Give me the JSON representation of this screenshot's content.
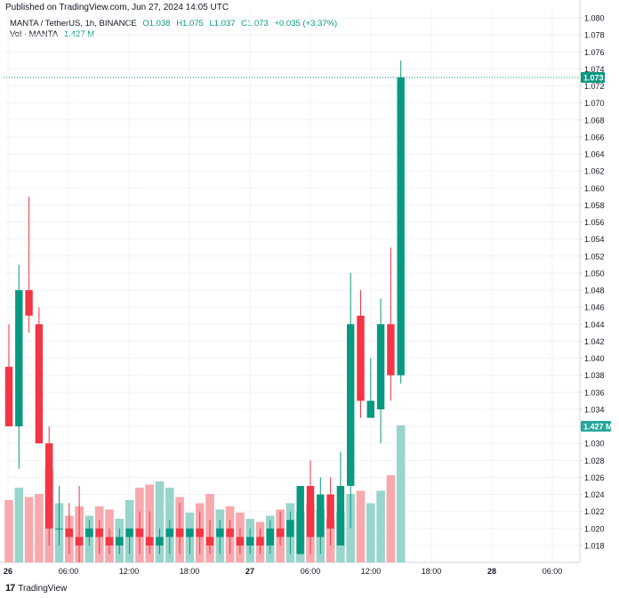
{
  "header": {
    "published": "Published on TradingView.com, Jun 27, 2024 14:05 UTC",
    "symbol": "MANTA / TetherUS, 1h, BINANCE",
    "o": "O1.038",
    "h": "H1.075",
    "l": "L1.037",
    "c": "C1.073",
    "change": "+0.035 (+3.37%)",
    "vol_label": "Vol · MANTA",
    "vol_value": "1.427 M"
  },
  "footer": {
    "brand": "TradingView"
  },
  "colors": {
    "up": "#089981",
    "down": "#f23645",
    "up_vol": "#99d5cc",
    "down_vol": "#f7a9ae",
    "grid": "#f0f3fa"
  },
  "chart_data": {
    "type": "candlestick",
    "y_ticks": [
      "1.080",
      "1.078",
      "1.076",
      "1.074",
      "1.072",
      "1.070",
      "1.068",
      "1.066",
      "1.064",
      "1.062",
      "1.060",
      "1.058",
      "1.056",
      "1.054",
      "1.052",
      "1.050",
      "1.048",
      "1.046",
      "1.044",
      "1.042",
      "1.040",
      "1.038",
      "1.036",
      "1.034",
      "1.032",
      "1.030",
      "1.028",
      "1.026",
      "1.024",
      "1.022",
      "1.020",
      "1.018"
    ],
    "x_ticks": [
      "26",
      "06:00",
      "12:00",
      "18:00",
      "27",
      "06:00",
      "12:00",
      "18:00",
      "28",
      "06:00"
    ],
    "last_price_label": "1.073",
    "volume_label": "1.427 M",
    "ylim": [
      1.0165,
      1.081
    ],
    "candles": [
      {
        "o": 1.039,
        "h": 1.044,
        "l": 1.032,
        "c": 1.032
      },
      {
        "o": 1.032,
        "h": 1.051,
        "l": 1.027,
        "c": 1.048
      },
      {
        "o": 1.048,
        "h": 1.059,
        "l": 1.043,
        "c": 1.045
      },
      {
        "o": 1.044,
        "h": 1.046,
        "l": 1.03,
        "c": 1.03
      },
      {
        "o": 1.03,
        "h": 1.032,
        "l": 1.018,
        "c": 1.02
      },
      {
        "o": 1.02,
        "h": 1.025,
        "l": 1.018,
        "c": 1.02
      },
      {
        "o": 1.02,
        "h": 1.023,
        "l": 1.017,
        "c": 1.019
      },
      {
        "o": 1.019,
        "h": 1.025,
        "l": 1.016,
        "c": 1.018
      },
      {
        "o": 1.019,
        "h": 1.021,
        "l": 1.018,
        "c": 1.02
      },
      {
        "o": 1.02,
        "h": 1.021,
        "l": 1.017,
        "c": 1.019
      },
      {
        "o": 1.019,
        "h": 1.02,
        "l": 1.017,
        "c": 1.018
      },
      {
        "o": 1.018,
        "h": 1.02,
        "l": 1.017,
        "c": 1.019
      },
      {
        "o": 1.019,
        "h": 1.02,
        "l": 1.017,
        "c": 1.02
      },
      {
        "o": 1.02,
        "h": 1.022,
        "l": 1.017,
        "c": 1.019
      },
      {
        "o": 1.019,
        "h": 1.022,
        "l": 1.017,
        "c": 1.018
      },
      {
        "o": 1.018,
        "h": 1.02,
        "l": 1.017,
        "c": 1.019
      },
      {
        "o": 1.019,
        "h": 1.021,
        "l": 1.017,
        "c": 1.02
      },
      {
        "o": 1.02,
        "h": 1.023,
        "l": 1.017,
        "c": 1.019
      },
      {
        "o": 1.019,
        "h": 1.02,
        "l": 1.017,
        "c": 1.02
      },
      {
        "o": 1.02,
        "h": 1.022,
        "l": 1.017,
        "c": 1.019
      },
      {
        "o": 1.019,
        "h": 1.021,
        "l": 1.017,
        "c": 1.018
      },
      {
        "o": 1.019,
        "h": 1.021,
        "l": 1.017,
        "c": 1.02
      },
      {
        "o": 1.02,
        "h": 1.021,
        "l": 1.017,
        "c": 1.019
      },
      {
        "o": 1.019,
        "h": 1.02,
        "l": 1.017,
        "c": 1.018
      },
      {
        "o": 1.018,
        "h": 1.02,
        "l": 1.017,
        "c": 1.019
      },
      {
        "o": 1.019,
        "h": 1.02,
        "l": 1.017,
        "c": 1.018
      },
      {
        "o": 1.018,
        "h": 1.021,
        "l": 1.017,
        "c": 1.02
      },
      {
        "o": 1.02,
        "h": 1.022,
        "l": 1.018,
        "c": 1.019
      },
      {
        "o": 1.019,
        "h": 1.022,
        "l": 1.017,
        "c": 1.021
      },
      {
        "o": 1.017,
        "h": 1.025,
        "l": 1.017,
        "c": 1.025
      },
      {
        "o": 1.025,
        "h": 1.028,
        "l": 1.017,
        "c": 1.019
      },
      {
        "o": 1.019,
        "h": 1.026,
        "l": 1.017,
        "c": 1.024
      },
      {
        "o": 1.024,
        "h": 1.026,
        "l": 1.018,
        "c": 1.02
      },
      {
        "o": 1.018,
        "h": 1.029,
        "l": 1.018,
        "c": 1.025
      },
      {
        "o": 1.025,
        "h": 1.05,
        "l": 1.02,
        "c": 1.044
      },
      {
        "o": 1.045,
        "h": 1.048,
        "l": 1.033,
        "c": 1.035
      },
      {
        "o": 1.033,
        "h": 1.04,
        "l": 1.033,
        "c": 1.035
      },
      {
        "o": 1.034,
        "h": 1.047,
        "l": 1.03,
        "c": 1.044
      },
      {
        "o": 1.044,
        "h": 1.053,
        "l": 1.035,
        "c": 1.038
      },
      {
        "o": 1.038,
        "h": 1.075,
        "l": 1.037,
        "c": 1.073
      }
    ],
    "volumes": [
      20,
      24,
      21,
      22,
      30,
      19,
      15,
      18,
      15,
      18,
      17,
      14,
      20,
      24,
      25,
      26,
      24,
      21,
      16,
      19,
      22,
      17,
      18,
      16,
      14,
      13,
      15,
      17,
      19,
      16,
      19,
      17,
      14,
      16,
      22,
      23,
      19,
      23,
      28,
      44
    ]
  }
}
